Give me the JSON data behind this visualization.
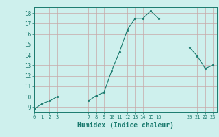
{
  "x": [
    0,
    1,
    2,
    3,
    7,
    8,
    9,
    10,
    11,
    12,
    13,
    14,
    15,
    16,
    20,
    21,
    22,
    23
  ],
  "y": [
    8.8,
    9.3,
    9.6,
    10.0,
    9.6,
    10.1,
    10.4,
    12.5,
    14.3,
    16.4,
    17.5,
    17.5,
    18.2,
    17.5,
    14.7,
    13.9,
    12.7,
    13.0
  ],
  "line_color": "#1a7a6e",
  "marker_color": "#1a7a6e",
  "bg_color": "#cef0ed",
  "grid_color": "#c8a8a8",
  "xlabel": "Humidex (Indice chaleur)",
  "xlabel_fontsize": 7,
  "ytick_values": [
    9,
    10,
    11,
    12,
    13,
    14,
    15,
    16,
    17,
    18
  ],
  "xtick_positions": [
    0,
    1,
    2,
    3,
    7,
    8,
    9,
    10,
    11,
    12,
    13,
    14,
    15,
    16,
    20,
    21,
    22,
    23
  ],
  "xtick_labels": [
    "0",
    "1",
    "2",
    "3",
    "7",
    "8",
    "9",
    "10",
    "11",
    "12",
    "13",
    "14",
    "15",
    "16",
    "20",
    "21",
    "22",
    "23"
  ],
  "xlim": [
    0,
    23.5
  ],
  "ylim": [
    8.5,
    18.6
  ]
}
